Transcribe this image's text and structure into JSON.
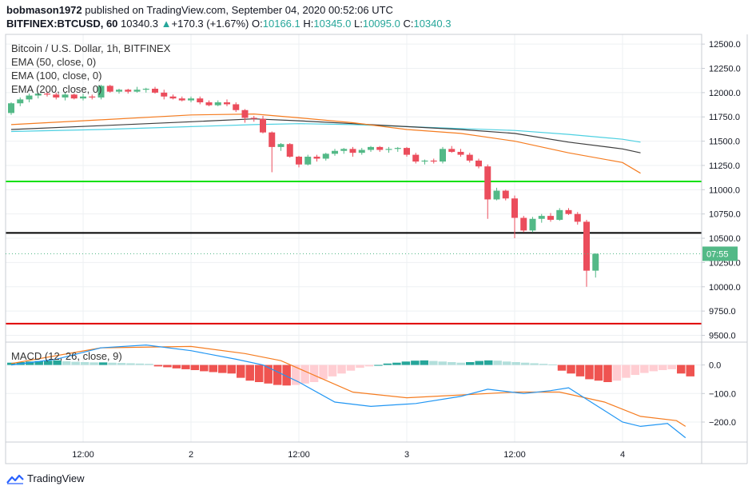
{
  "header": {
    "author": "bobmason1972",
    "published_text": " published on TradingView.com, September 04, 2020 00:52:06 UTC",
    "symbol": "BITFINEX:BTCUSD, 60",
    "last": "10340.3",
    "change": "+170.3 (+1.67%)",
    "open_label": "O:",
    "open": "10166.1",
    "high_label": "H:",
    "high": "10345.0",
    "low_label": "L:",
    "low": "10095.0",
    "close_label": "C:",
    "close": "10340.3"
  },
  "legend": {
    "title": "Bitcoin / U.S. Dollar, 1h, BITFINEX",
    "ema50": "EMA (50, close, 0)",
    "ema100": "EMA (100, close, 0)",
    "ema200": "EMA (200, close, 0)",
    "macd": "MACD (12, 26, close, 9)"
  },
  "footer": {
    "brand": "TradingView"
  },
  "countdown": "07:55",
  "colors": {
    "up": "#53b987",
    "down": "#eb4d5c",
    "ema50": "#f57c20",
    "ema100": "#3d3d3d",
    "ema200": "#4dd0e1",
    "green_line": "#00e000",
    "black_line": "#000000",
    "red_line": "#e00000",
    "macd_line": "#2196f3",
    "signal_line": "#f57c20",
    "hist_up_strong": "#26a69a",
    "hist_up_weak": "#b2dfdb",
    "hist_down_strong": "#ef5350",
    "hist_down_weak": "#ffcdd2"
  },
  "chart_data": {
    "type": "candlestick",
    "price_axis": {
      "ylim": [
        9430,
        12600
      ],
      "ticks": [
        "12500.0",
        "12250.0",
        "12000.0",
        "11750.0",
        "11500.0",
        "11250.0",
        "11000.0",
        "10750.0",
        "10500.0",
        "10250.0",
        "10000.0",
        "9750.0",
        "9500.0"
      ],
      "tick_values": [
        12500,
        12250,
        12000,
        11750,
        11500,
        11250,
        11000,
        10750,
        10500,
        10250,
        10000,
        9750,
        9500
      ]
    },
    "current_price": 10340.3,
    "time_axis": {
      "labels": [
        "12:00",
        "2",
        "12:00",
        "3",
        "12:00",
        "4"
      ],
      "bar_index": [
        8,
        20,
        32,
        44,
        56,
        68
      ]
    },
    "horizontal_lines": [
      {
        "price": 11085,
        "color": "green"
      },
      {
        "price": 10555,
        "color": "black"
      },
      {
        "price": 9620,
        "color": "red"
      }
    ],
    "candles": [
      [
        11790,
        11900,
        11770,
        11890
      ],
      [
        11890,
        11950,
        11860,
        11930
      ],
      [
        11930,
        11990,
        11900,
        11970
      ],
      [
        11970,
        12000,
        11940,
        11990
      ],
      [
        11990,
        12010,
        11960,
        11980
      ],
      [
        11980,
        12000,
        11930,
        11950
      ],
      [
        11950,
        12000,
        11920,
        11980
      ],
      [
        11980,
        11990,
        11930,
        11940
      ],
      [
        11940,
        11990,
        11920,
        11960
      ],
      [
        11960,
        11980,
        11930,
        11950
      ],
      [
        11950,
        12080,
        11930,
        12070
      ],
      [
        12070,
        12080,
        12000,
        12010
      ],
      [
        12010,
        12040,
        11990,
        12030
      ],
      [
        12030,
        12040,
        11990,
        12010
      ],
      [
        12010,
        12060,
        12000,
        12030
      ],
      [
        12030,
        12050,
        12000,
        12040
      ],
      [
        12040,
        12060,
        11990,
        12000
      ],
      [
        12000,
        12030,
        11930,
        11960
      ],
      [
        11960,
        11980,
        11930,
        11940
      ],
      [
        11940,
        11960,
        11910,
        11920
      ],
      [
        11920,
        11960,
        11900,
        11940
      ],
      [
        11940,
        11960,
        11880,
        11900
      ],
      [
        11900,
        11920,
        11860,
        11870
      ],
      [
        11870,
        11920,
        11860,
        11900
      ],
      [
        11900,
        11930,
        11860,
        11880
      ],
      [
        11880,
        11900,
        11800,
        11820
      ],
      [
        11820,
        11830,
        11690,
        11740
      ],
      [
        11740,
        11760,
        11700,
        11730
      ],
      [
        11730,
        11760,
        11580,
        11590
      ],
      [
        11590,
        11600,
        11180,
        11440
      ],
      [
        11440,
        11480,
        11400,
        11470
      ],
      [
        11470,
        11480,
        11330,
        11340
      ],
      [
        11340,
        11350,
        11230,
        11260
      ],
      [
        11260,
        11360,
        11250,
        11340
      ],
      [
        11340,
        11360,
        11290,
        11320
      ],
      [
        11320,
        11380,
        11300,
        11370
      ],
      [
        11370,
        11420,
        11350,
        11400
      ],
      [
        11400,
        11430,
        11370,
        11420
      ],
      [
        11420,
        11440,
        11340,
        11380
      ],
      [
        11380,
        11430,
        11360,
        11410
      ],
      [
        11410,
        11450,
        11390,
        11440
      ],
      [
        11440,
        11450,
        11390,
        11410
      ],
      [
        11410,
        11440,
        11380,
        11420
      ],
      [
        11420,
        11440,
        11390,
        11430
      ],
      [
        11430,
        11440,
        11340,
        11360
      ],
      [
        11360,
        11380,
        11270,
        11290
      ],
      [
        11290,
        11310,
        11260,
        11300
      ],
      [
        11300,
        11320,
        11270,
        11290
      ],
      [
        11290,
        11440,
        11270,
        11420
      ],
      [
        11420,
        11450,
        11380,
        11390
      ],
      [
        11390,
        11420,
        11340,
        11360
      ],
      [
        11360,
        11380,
        11280,
        11300
      ],
      [
        11300,
        11320,
        11220,
        11240
      ],
      [
        11240,
        11260,
        10700,
        10900
      ],
      [
        10900,
        11020,
        10890,
        10990
      ],
      [
        10990,
        11000,
        10890,
        10910
      ],
      [
        10910,
        10940,
        10500,
        10710
      ],
      [
        10710,
        10730,
        10560,
        10580
      ],
      [
        10580,
        10720,
        10560,
        10700
      ],
      [
        10700,
        10750,
        10660,
        10730
      ],
      [
        10730,
        10760,
        10670,
        10690
      ],
      [
        10690,
        10810,
        10680,
        10790
      ],
      [
        10790,
        10810,
        10740,
        10750
      ],
      [
        10750,
        10770,
        10640,
        10670
      ],
      [
        10670,
        10690,
        10000,
        10166
      ],
      [
        10166.1,
        10345,
        10095,
        10340.3
      ]
    ],
    "ema50": [
      [
        0,
        11670
      ],
      [
        10,
        11720
      ],
      [
        20,
        11770
      ],
      [
        27,
        11780
      ],
      [
        32,
        11740
      ],
      [
        38,
        11690
      ],
      [
        44,
        11620
      ],
      [
        50,
        11580
      ],
      [
        56,
        11500
      ],
      [
        62,
        11380
      ],
      [
        68,
        11280
      ],
      [
        70,
        11170
      ]
    ],
    "ema100": [
      [
        0,
        11620
      ],
      [
        10,
        11660
      ],
      [
        20,
        11700
      ],
      [
        27,
        11730
      ],
      [
        32,
        11710
      ],
      [
        38,
        11680
      ],
      [
        44,
        11650
      ],
      [
        50,
        11620
      ],
      [
        56,
        11580
      ],
      [
        62,
        11490
      ],
      [
        68,
        11420
      ],
      [
        70,
        11380
      ]
    ],
    "ema200": [
      [
        0,
        11600
      ],
      [
        10,
        11620
      ],
      [
        20,
        11650
      ],
      [
        27,
        11670
      ],
      [
        32,
        11680
      ],
      [
        38,
        11670
      ],
      [
        44,
        11650
      ],
      [
        50,
        11630
      ],
      [
        56,
        11610
      ],
      [
        62,
        11570
      ],
      [
        68,
        11520
      ],
      [
        70,
        11490
      ]
    ],
    "macd_axis": {
      "ylim": [
        -270,
        80
      ],
      "ticks": [
        "0.0",
        "−100.0",
        "−200.0"
      ],
      "tick_values": [
        0,
        -100,
        -200
      ]
    },
    "macd": [
      [
        0,
        0
      ],
      [
        5,
        20
      ],
      [
        10,
        60
      ],
      [
        15,
        70
      ],
      [
        20,
        50
      ],
      [
        25,
        20
      ],
      [
        28,
        0
      ],
      [
        32,
        -60
      ],
      [
        36,
        -130
      ],
      [
        40,
        -145
      ],
      [
        45,
        -135
      ],
      [
        50,
        -110
      ],
      [
        53,
        -85
      ],
      [
        57,
        -100
      ],
      [
        60,
        -90
      ],
      [
        62,
        -80
      ],
      [
        65,
        -140
      ],
      [
        68,
        -200
      ],
      [
        70,
        -215
      ],
      [
        73,
        -205
      ],
      [
        75,
        -255
      ]
    ],
    "signal": [
      [
        0,
        5
      ],
      [
        10,
        60
      ],
      [
        20,
        65
      ],
      [
        26,
        40
      ],
      [
        30,
        15
      ],
      [
        34,
        -40
      ],
      [
        38,
        -95
      ],
      [
        44,
        -115
      ],
      [
        50,
        -105
      ],
      [
        56,
        -95
      ],
      [
        61,
        -95
      ],
      [
        66,
        -130
      ],
      [
        70,
        -180
      ],
      [
        74,
        -195
      ],
      [
        75,
        -215
      ]
    ],
    "macd_hist": [
      8,
      10,
      12,
      14,
      15,
      16,
      13,
      11,
      10,
      9,
      9,
      8,
      7,
      6,
      5,
      4,
      -5,
      -8,
      -12,
      -15,
      -18,
      -22,
      -25,
      -28,
      -30,
      -45,
      -55,
      -60,
      -65,
      -70,
      -72,
      -70,
      -65,
      -60,
      -50,
      -40,
      -30,
      -20,
      -10,
      -5,
      0,
      5,
      8,
      12,
      15,
      16,
      14,
      12,
      10,
      8,
      10,
      14,
      16,
      15,
      12,
      10,
      8,
      6,
      4,
      2,
      -20,
      -30,
      -40,
      -50,
      -55,
      -60,
      -55,
      -45,
      -35,
      -28,
      -22,
      -18,
      -15,
      -30,
      -40
    ]
  }
}
